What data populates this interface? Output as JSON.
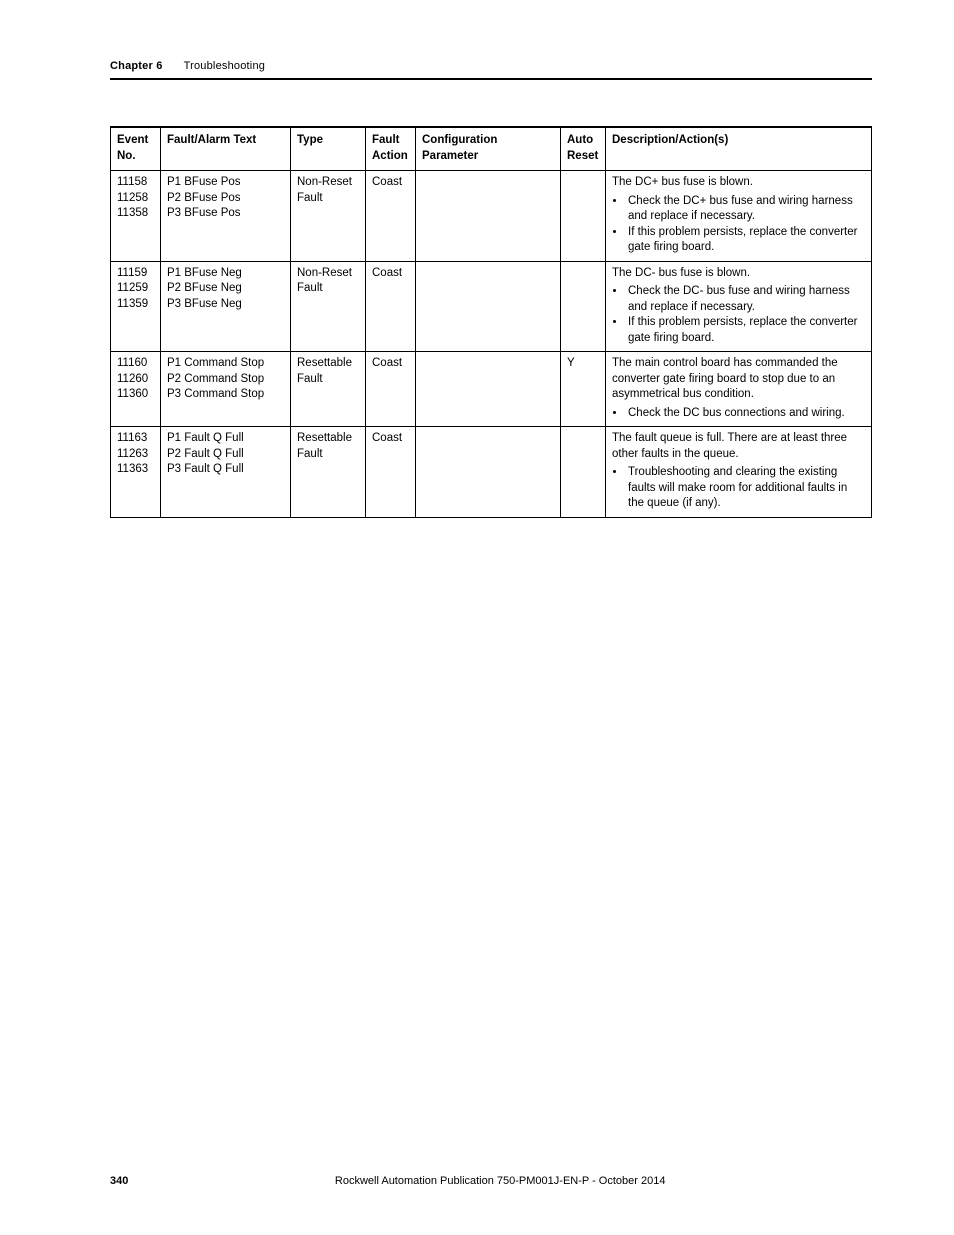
{
  "header": {
    "chapter_label": "Chapter 6",
    "section_title": "Troubleshooting"
  },
  "table": {
    "columns": {
      "event_no": "Event\nNo.",
      "fault_text": "Fault/Alarm Text",
      "type": "Type",
      "fault_action": "Fault\nAction",
      "config_param": "Configuration\nParameter",
      "auto_reset": "Auto\nReset",
      "description": "Description/Action(s)"
    },
    "rows": [
      {
        "event_no": [
          "11158",
          "11258",
          "11358"
        ],
        "fault_text": [
          "P1 BFuse Pos",
          "P2 BFuse Pos",
          "P3 BFuse Pos"
        ],
        "type": [
          "Non-Reset",
          "Fault"
        ],
        "fault_action": "Coast",
        "config_param": "",
        "auto_reset": "",
        "desc_lead": "The DC+ bus fuse is blown.",
        "actions": [
          "Check the DC+ bus fuse and wiring harness and replace if necessary.",
          "If this problem persists, replace the converter gate firing board."
        ]
      },
      {
        "event_no": [
          "11159",
          "11259",
          "11359"
        ],
        "fault_text": [
          "P1 BFuse Neg",
          "P2 BFuse Neg",
          "P3 BFuse Neg"
        ],
        "type": [
          "Non-Reset",
          "Fault"
        ],
        "fault_action": "Coast",
        "config_param": "",
        "auto_reset": "",
        "desc_lead": "The DC- bus fuse is blown.",
        "actions": [
          "Check the DC- bus fuse and wiring harness and replace if necessary.",
          "If this problem persists, replace the converter gate firing board."
        ]
      },
      {
        "event_no": [
          "11160",
          "11260",
          "11360"
        ],
        "fault_text": [
          "P1 Command Stop",
          "P2 Command Stop",
          "P3 Command Stop"
        ],
        "type": [
          "Resettable",
          "Fault"
        ],
        "fault_action": "Coast",
        "config_param": "",
        "auto_reset": "Y",
        "desc_lead": "The main control board has commanded the converter gate firing board to stop due to an asymmetrical bus condition.",
        "actions": [
          "Check the DC bus connections and wiring."
        ]
      },
      {
        "event_no": [
          "11163",
          "11263",
          "11363"
        ],
        "fault_text": [
          "P1 Fault Q Full",
          "P2 Fault Q Full",
          "P3 Fault Q Full"
        ],
        "type": [
          "Resettable",
          "Fault"
        ],
        "fault_action": "Coast",
        "config_param": "",
        "auto_reset": "",
        "desc_lead": "The fault queue is full. There are at least three other faults in the queue.",
        "actions": [
          "Troubleshooting and clearing the existing faults will make room for additional faults in the queue (if any)."
        ]
      }
    ]
  },
  "footer": {
    "page_number": "340",
    "publication": "Rockwell Automation Publication 750-PM001J-EN-P - October 2014"
  }
}
